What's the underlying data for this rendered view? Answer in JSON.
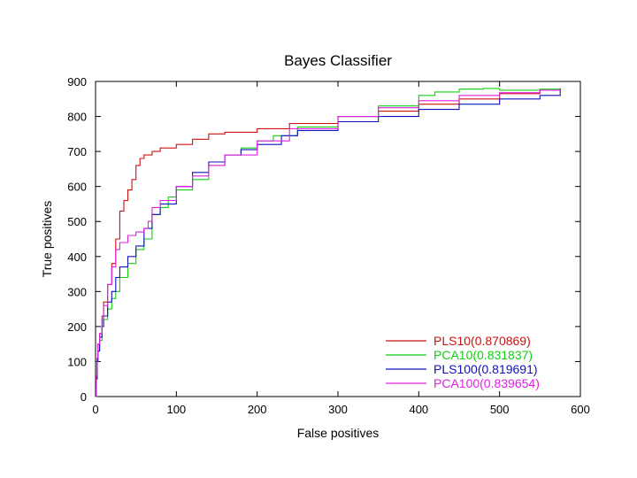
{
  "chart_data": {
    "type": "line",
    "title": "Bayes Classifier",
    "xlabel": "False positives",
    "ylabel": "True positives",
    "xlim": [
      0,
      600
    ],
    "ylim": [
      0,
      900
    ],
    "xticks": [
      "0",
      "100",
      "200",
      "300",
      "400",
      "500",
      "600"
    ],
    "yticks": [
      "0",
      "100",
      "200",
      "300",
      "400",
      "500",
      "600",
      "700",
      "800",
      "900"
    ],
    "xtick_values": [
      0,
      100,
      200,
      300,
      400,
      500,
      600
    ],
    "ytick_values": [
      0,
      100,
      200,
      300,
      400,
      500,
      600,
      700,
      800,
      900
    ],
    "grid": false,
    "legend_position": "bottom-right",
    "series": [
      {
        "name": "PLS10(0.870869)",
        "color": "#d01010",
        "x": [
          0,
          1,
          2,
          3,
          5,
          8,
          10,
          15,
          20,
          25,
          30,
          35,
          40,
          45,
          50,
          55,
          60,
          70,
          80,
          100,
          120,
          140,
          160,
          200,
          240,
          300,
          350,
          400,
          450,
          500,
          550,
          575
        ],
        "y": [
          0,
          60,
          110,
          150,
          180,
          230,
          270,
          320,
          380,
          450,
          530,
          560,
          590,
          620,
          660,
          680,
          690,
          700,
          710,
          720,
          735,
          750,
          755,
          765,
          780,
          800,
          815,
          835,
          850,
          865,
          875,
          880
        ]
      },
      {
        "name": "PCA10(0.831837)",
        "color": "#10d010",
        "x": [
          0,
          1,
          2,
          3,
          5,
          8,
          10,
          15,
          20,
          25,
          30,
          40,
          50,
          60,
          70,
          80,
          90,
          100,
          120,
          140,
          160,
          180,
          200,
          220,
          250,
          300,
          350,
          400,
          420,
          450,
          480,
          500,
          550,
          575
        ],
        "y": [
          0,
          50,
          100,
          130,
          160,
          200,
          220,
          250,
          280,
          300,
          340,
          380,
          420,
          450,
          520,
          540,
          570,
          590,
          620,
          660,
          690,
          710,
          730,
          745,
          770,
          800,
          830,
          860,
          870,
          878,
          880,
          875,
          878,
          880
        ]
      },
      {
        "name": "PLS100(0.819691)",
        "color": "#1010c0",
        "x": [
          0,
          1,
          2,
          3,
          5,
          8,
          10,
          15,
          20,
          25,
          30,
          40,
          50,
          60,
          70,
          80,
          100,
          120,
          140,
          160,
          180,
          200,
          230,
          250,
          300,
          350,
          400,
          450,
          500,
          550,
          575
        ],
        "y": [
          0,
          50,
          100,
          130,
          170,
          200,
          230,
          270,
          300,
          340,
          370,
          400,
          430,
          480,
          520,
          550,
          600,
          640,
          670,
          690,
          705,
          720,
          745,
          760,
          785,
          800,
          820,
          835,
          850,
          860,
          880
        ]
      },
      {
        "name": "PCA100(0.839654)",
        "color": "#e020e0",
        "x": [
          0,
          1,
          2,
          3,
          5,
          8,
          10,
          15,
          20,
          25,
          30,
          40,
          50,
          60,
          65,
          70,
          80,
          100,
          120,
          140,
          160,
          200,
          240,
          300,
          350,
          400,
          450,
          500,
          550,
          575
        ],
        "y": [
          0,
          60,
          110,
          150,
          180,
          220,
          260,
          320,
          370,
          420,
          440,
          460,
          470,
          480,
          500,
          540,
          560,
          600,
          630,
          660,
          690,
          730,
          765,
          800,
          825,
          845,
          860,
          868,
          875,
          880
        ]
      }
    ]
  }
}
